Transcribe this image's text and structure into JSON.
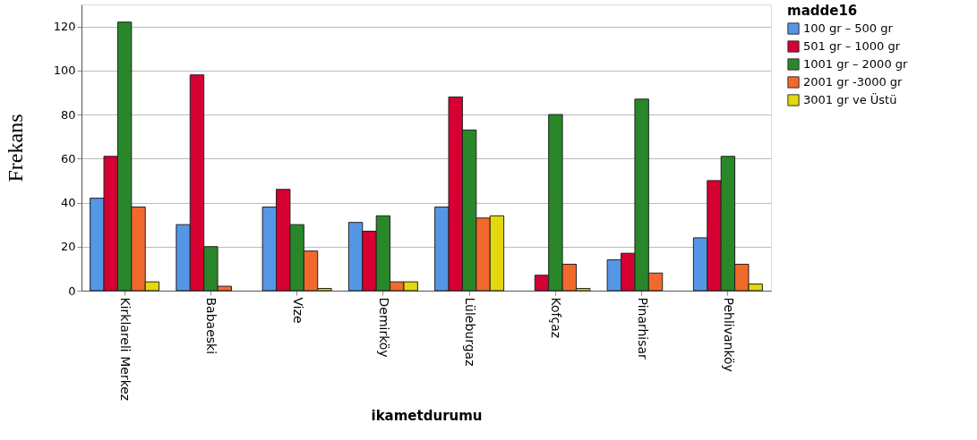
{
  "chart_data": {
    "type": "bar",
    "xlabel": "ikametdurumu",
    "ylabel": "Frekans",
    "legend_title": "madde16",
    "categories": [
      "Kirklareli Merkez",
      "Babaeski",
      "Vize",
      "Demirköy",
      "Lüleburgaz",
      "Kofçaz",
      "Pinarhisar",
      "Pehlivanköy"
    ],
    "series": [
      {
        "name": "100 gr – 500 gr",
        "color": "#5596e6",
        "values": [
          42,
          30,
          38,
          31,
          38,
          null,
          14,
          24
        ]
      },
      {
        "name": "501 gr – 1000 gr",
        "color": "#d60032",
        "values": [
          61,
          98,
          46,
          27,
          88,
          7,
          17,
          50
        ]
      },
      {
        "name": "1001 gr – 2000 gr",
        "color": "#298729",
        "values": [
          122,
          20,
          30,
          34,
          73,
          80,
          87,
          61
        ]
      },
      {
        "name": "2001 gr -3000 gr",
        "color": "#f1692b",
        "values": [
          38,
          2,
          18,
          4,
          33,
          12,
          8,
          12
        ]
      },
      {
        "name": "3001 gr ve Üstü",
        "color": "#e2d80c",
        "values": [
          4,
          null,
          1,
          4,
          34,
          1,
          null,
          3
        ]
      }
    ],
    "ylim": [
      0,
      130
    ],
    "yticks": [
      0,
      20,
      40,
      60,
      80,
      100,
      120
    ],
    "grid": "y",
    "legend": "top right"
  }
}
